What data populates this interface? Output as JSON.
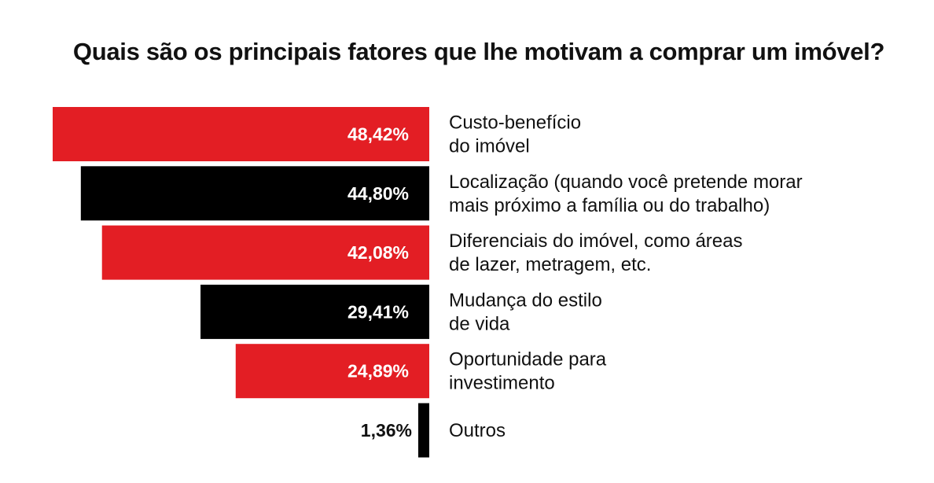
{
  "chart_data": {
    "type": "bar",
    "orientation": "horizontal",
    "title": "Quais são os principais fatores que lhe motivam a comprar um imóvel?",
    "categories": [
      "Custo-benefício\ndo imóvel",
      "Localização (quando você pretende morar\nmais próximo a família ou do trabalho)",
      "Diferenciais do imóvel, como áreas\nde lazer, metragem, etc.",
      "Mudança do estilo\nde vida",
      "Oportunidade para\ninvestimento",
      "Outros"
    ],
    "values": [
      48.42,
      44.8,
      42.08,
      29.41,
      24.89,
      1.36
    ],
    "value_labels": [
      "48,42%",
      "44,80%",
      "42,08%",
      "29,41%",
      "24,89%",
      "1,36%"
    ],
    "unit": "%",
    "bar_colors": [
      "#e31e24",
      "#000000",
      "#e31e24",
      "#000000",
      "#e31e24",
      "#000000"
    ],
    "xlim": [
      0,
      48.42
    ],
    "grid": false,
    "legend": "none"
  }
}
